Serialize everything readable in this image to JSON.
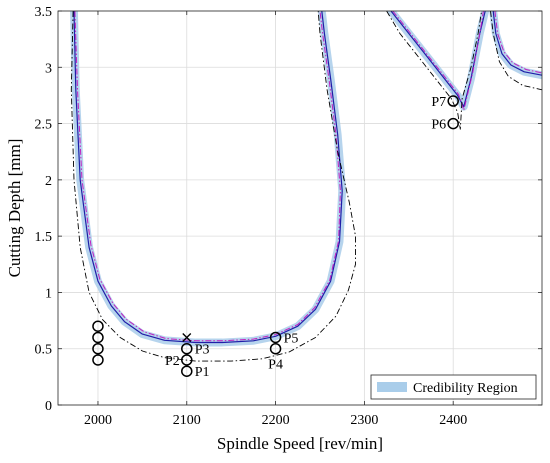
{
  "chart_data": {
    "type": "line",
    "xlabel": "Spindle Speed [rev/min]",
    "ylabel": "Cutting Depth [mm]",
    "xlim": [
      1955,
      2500
    ],
    "ylim": [
      0,
      3.5
    ],
    "x_ticks": [
      2000,
      2100,
      2200,
      2300,
      2400
    ],
    "y_ticks": [
      0,
      0.5,
      1,
      1.5,
      2,
      2.5,
      3,
      3.5
    ],
    "grid": true,
    "legend": {
      "placement": "bottom-right",
      "entries": [
        {
          "label": "Credibility Region"
        }
      ]
    },
    "colors": {
      "mean_line": "#1f1fa8",
      "credibility_band": "#a9cdea",
      "upper_bound": "#c020c0",
      "lower_bound": "#000000",
      "markers": "#000000"
    },
    "series": [
      {
        "role": "mean-line",
        "lobes": [
          [
            [
              1973,
              3.5
            ],
            [
              1975,
              2.8
            ],
            [
              1980,
              2.0
            ],
            [
              1990,
              1.4
            ],
            [
              2000,
              1.1
            ],
            [
              2015,
              0.88
            ],
            [
              2030,
              0.74
            ],
            [
              2050,
              0.63
            ],
            [
              2075,
              0.575
            ],
            [
              2110,
              0.555
            ],
            [
              2140,
              0.555
            ],
            [
              2175,
              0.57
            ],
            [
              2200,
              0.61
            ],
            [
              2225,
              0.7
            ],
            [
              2245,
              0.85
            ],
            [
              2262,
              1.1
            ],
            [
              2272,
              1.45
            ],
            [
              2275,
              1.9
            ],
            [
              2270,
              2.4
            ],
            [
              2262,
              2.9
            ],
            [
              2255,
              3.3
            ],
            [
              2252,
              3.5
            ]
          ],
          [
            [
              2330,
              3.5
            ],
            [
              2350,
              3.3
            ],
            [
              2370,
              3.1
            ],
            [
              2390,
              2.9
            ],
            [
              2405,
              2.75
            ],
            [
              2412,
              2.65
            ],
            [
              2420,
              2.9
            ],
            [
              2430,
              3.3
            ],
            [
              2436,
              3.5
            ]
          ],
          [
            [
              2445,
              3.5
            ],
            [
              2448,
              3.3
            ],
            [
              2455,
              3.12
            ],
            [
              2465,
              3.02
            ],
            [
              2480,
              2.96
            ],
            [
              2500,
              2.93
            ]
          ]
        ]
      },
      {
        "role": "upper-bound",
        "lobes": [
          [
            [
              1974,
              3.5
            ],
            [
              1977,
              2.8
            ],
            [
              1982,
              2.0
            ],
            [
              1992,
              1.42
            ],
            [
              2002,
              1.12
            ],
            [
              2017,
              0.9
            ],
            [
              2032,
              0.76
            ],
            [
              2052,
              0.65
            ],
            [
              2077,
              0.59
            ],
            [
              2110,
              0.57
            ],
            [
              2140,
              0.57
            ],
            [
              2175,
              0.585
            ],
            [
              2200,
              0.625
            ],
            [
              2225,
              0.715
            ],
            [
              2244,
              0.865
            ],
            [
              2261,
              1.11
            ],
            [
              2271,
              1.46
            ],
            [
              2273,
              1.9
            ],
            [
              2268,
              2.4
            ],
            [
              2260,
              2.9
            ],
            [
              2253,
              3.3
            ],
            [
              2250,
              3.5
            ]
          ],
          [
            [
              2332,
              3.5
            ],
            [
              2352,
              3.3
            ],
            [
              2372,
              3.1
            ],
            [
              2392,
              2.9
            ],
            [
              2406,
              2.76
            ],
            [
              2412,
              2.62
            ],
            [
              2422,
              2.95
            ],
            [
              2430,
              3.3
            ],
            [
              2434,
              3.5
            ]
          ],
          [
            [
              2447,
              3.5
            ],
            [
              2450,
              3.3
            ],
            [
              2457,
              3.14
            ],
            [
              2467,
              3.04
            ],
            [
              2482,
              2.98
            ],
            [
              2500,
              2.95
            ]
          ]
        ]
      },
      {
        "role": "lower-bound",
        "lobes": [
          [
            [
              1972,
              3.5
            ],
            [
              1970,
              2.8
            ],
            [
              1973,
              2.0
            ],
            [
              1980,
              1.4
            ],
            [
              1990,
              1.0
            ],
            [
              2005,
              0.76
            ],
            [
              2025,
              0.6
            ],
            [
              2050,
              0.48
            ],
            [
              2075,
              0.42
            ],
            [
              2110,
              0.39
            ],
            [
              2150,
              0.39
            ],
            [
              2185,
              0.41
            ],
            [
              2215,
              0.47
            ],
            [
              2245,
              0.6
            ],
            [
              2268,
              0.79
            ],
            [
              2282,
              1.02
            ],
            [
              2290,
              1.25
            ],
            [
              2290,
              1.5
            ],
            [
              2283,
              1.8
            ],
            [
              2270,
              2.25
            ],
            [
              2258,
              2.8
            ],
            [
              2250,
              3.3
            ],
            [
              2248,
              3.5
            ]
          ],
          [
            [
              2325,
              3.5
            ],
            [
              2340,
              3.3
            ],
            [
              2360,
              3.1
            ],
            [
              2380,
              2.9
            ],
            [
              2398,
              2.72
            ],
            [
              2405,
              2.6
            ],
            [
              2408,
              2.45
            ],
            [
              2410,
              2.72
            ],
            [
              2420,
              3.0
            ],
            [
              2428,
              3.3
            ],
            [
              2432,
              3.5
            ]
          ],
          [
            [
              2442,
              3.5
            ],
            [
              2445,
              3.3
            ],
            [
              2452,
              3.05
            ],
            [
              2462,
              2.92
            ],
            [
              2478,
              2.84
            ],
            [
              2500,
              2.8
            ]
          ]
        ]
      }
    ],
    "band_halfwidth": 0.035,
    "points": [
      {
        "label": "",
        "x": 2000,
        "y": 0.4,
        "marker": "circle"
      },
      {
        "label": "",
        "x": 2000,
        "y": 0.5,
        "marker": "circle"
      },
      {
        "label": "",
        "x": 2000,
        "y": 0.6,
        "marker": "circle"
      },
      {
        "label": "",
        "x": 2000,
        "y": 0.7,
        "marker": "circle"
      },
      {
        "label": "P1",
        "x": 2100,
        "y": 0.3,
        "marker": "circle",
        "label_side": "right"
      },
      {
        "label": "P2",
        "x": 2100,
        "y": 0.4,
        "marker": "circle",
        "label_side": "left"
      },
      {
        "label": "P3",
        "x": 2100,
        "y": 0.5,
        "marker": "circle",
        "label_side": "right"
      },
      {
        "label": "",
        "x": 2100,
        "y": 0.6,
        "marker": "cross"
      },
      {
        "label": "P4",
        "x": 2200,
        "y": 0.5,
        "marker": "circle",
        "label_side": "below"
      },
      {
        "label": "P5",
        "x": 2200,
        "y": 0.6,
        "marker": "circle",
        "label_side": "right"
      },
      {
        "label": "P6",
        "x": 2400,
        "y": 2.5,
        "marker": "circle",
        "label_side": "left"
      },
      {
        "label": "P7",
        "x": 2400,
        "y": 2.7,
        "marker": "circle",
        "label_side": "left"
      }
    ]
  }
}
